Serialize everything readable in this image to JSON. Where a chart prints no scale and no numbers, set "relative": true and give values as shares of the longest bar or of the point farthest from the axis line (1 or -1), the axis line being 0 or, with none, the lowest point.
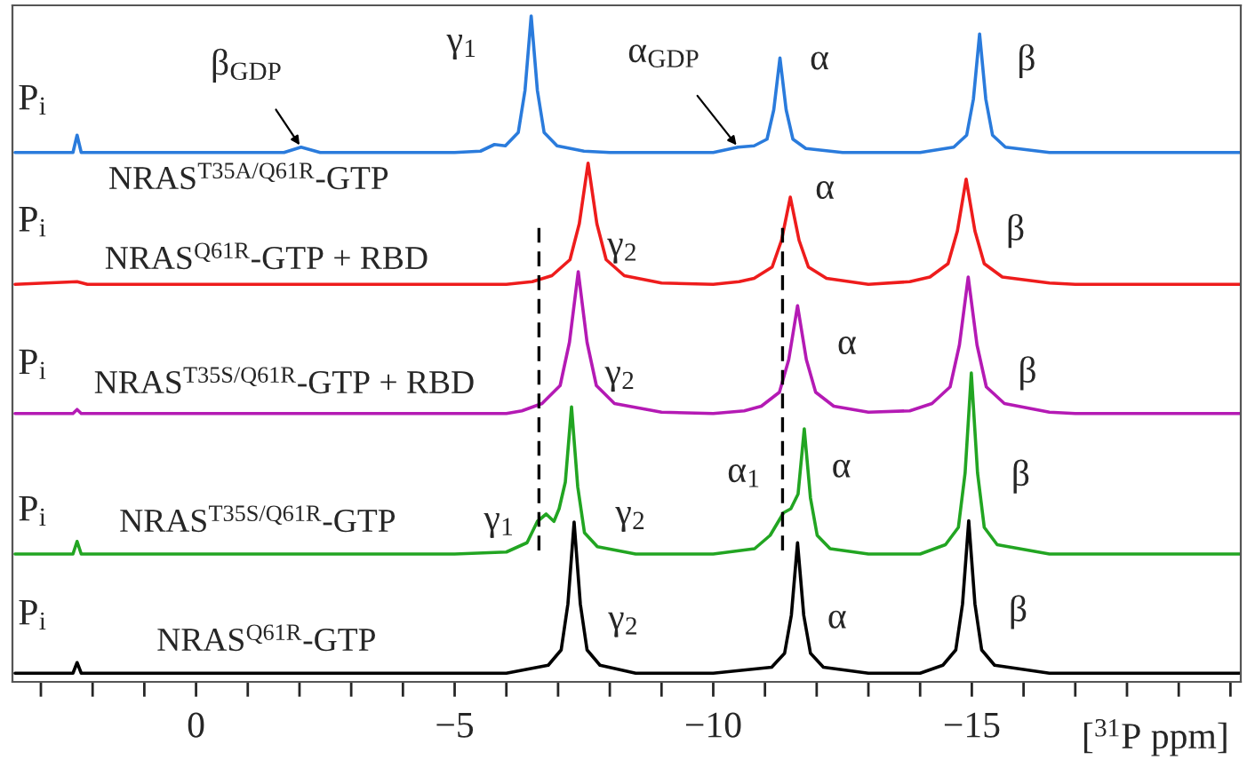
{
  "chart_data": {
    "type": "line",
    "relative": true,
    "xlim": [
      3.55,
      -20.2
    ],
    "xlabel": "[$^{31}$P ppm]",
    "tick_labels": "x",
    "xticks": [
      {
        "value": 3,
        "label": null
      },
      {
        "value": 2,
        "label": null
      },
      {
        "value": 1,
        "label": null
      },
      0,
      {
        "value": -1,
        "label": null
      },
      {
        "value": -2,
        "label": null
      },
      {
        "value": -3,
        "label": null
      },
      {
        "value": -4,
        "label": null
      },
      {
        "value": -5,
        "label": "−5"
      },
      {
        "value": -6,
        "label": null
      },
      {
        "value": -7,
        "label": null
      },
      {
        "value": -8,
        "label": null
      },
      {
        "value": -9,
        "label": null
      },
      {
        "value": -10,
        "label": "−10"
      },
      {
        "value": -11,
        "label": null
      },
      {
        "value": -12,
        "label": null
      },
      {
        "value": -13,
        "label": null
      },
      {
        "value": -14,
        "label": null
      },
      {
        "value": -15,
        "label": "−15"
      },
      {
        "value": -16,
        "label": null
      },
      {
        "value": -17,
        "label": null
      },
      {
        "value": -18,
        "label": null
      },
      {
        "value": -19,
        "label": null
      },
      {
        "value": -20,
        "label": null
      }
    ],
    "series": [
      {
        "color": "#2a7bdc",
        "x": [
          3.5,
          2.38,
          2.3,
          2.22,
          1,
          0,
          -1,
          -1.7,
          -2.03,
          -2.4,
          -3,
          -4,
          -5,
          -5.5,
          -5.77,
          -5.98,
          -6.23,
          -6.36,
          -6.48,
          -6.6,
          -6.73,
          -6.98,
          -7.5,
          -8,
          -9,
          -10,
          -10.48,
          -10.79,
          -11.04,
          -11.17,
          -11.29,
          -11.41,
          -11.54,
          -11.79,
          -12.5,
          -13,
          -14,
          -14.65,
          -14.9,
          -15.03,
          -15.15,
          -15.27,
          -15.4,
          -15.65,
          -16.5,
          -17,
          -18,
          -19,
          -20.2
        ],
        "values": [
          0.795,
          0.795,
          0.821,
          0.795,
          0.795,
          0.795,
          0.795,
          0.795,
          0.803,
          0.795,
          0.795,
          0.795,
          0.795,
          0.797,
          0.807,
          0.805,
          0.825,
          0.888,
          1,
          0.888,
          0.825,
          0.805,
          0.797,
          0.795,
          0.795,
          0.795,
          0.803,
          0.805,
          0.815,
          0.859,
          0.937,
          0.859,
          0.815,
          0.801,
          0.795,
          0.795,
          0.795,
          0.803,
          0.821,
          0.875,
          0.973,
          0.875,
          0.821,
          0.803,
          0.795,
          0.795,
          0.795,
          0.795,
          0.795
        ]
      },
      {
        "color": "#ee1c1c",
        "x": [
          3.5,
          2.3,
          2.1,
          1,
          0,
          -1,
          -2,
          -3,
          -4,
          -5,
          -6,
          -6.5,
          -6.88,
          -7.23,
          -7.41,
          -7.58,
          -7.75,
          -7.93,
          -8.28,
          -9,
          -10,
          -10.5,
          -10.79,
          -11.14,
          -11.32,
          -11.49,
          -11.66,
          -11.84,
          -12.19,
          -13,
          -13.8,
          -14.19,
          -14.54,
          -14.72,
          -14.89,
          -15.06,
          -15.24,
          -15.59,
          -16.5,
          -17,
          -18,
          -19,
          -20.2
        ],
        "values": [
          0.597,
          0.601,
          0.597,
          0.597,
          0.597,
          0.597,
          0.597,
          0.597,
          0.597,
          0.597,
          0.597,
          0.601,
          0.61,
          0.634,
          0.688,
          0.779,
          0.688,
          0.634,
          0.61,
          0.599,
          0.597,
          0.601,
          0.606,
          0.623,
          0.663,
          0.728,
          0.663,
          0.623,
          0.606,
          0.597,
          0.601,
          0.608,
          0.628,
          0.677,
          0.755,
          0.677,
          0.628,
          0.608,
          0.599,
          0.597,
          0.597,
          0.597,
          0.597
        ]
      },
      {
        "color": "#b41ab4",
        "x": [
          3.5,
          2.38,
          2.3,
          2.22,
          1,
          0,
          -1,
          -2,
          -3,
          -4,
          -5,
          -6,
          -6.3,
          -6.69,
          -7.04,
          -7.22,
          -7.39,
          -7.56,
          -7.74,
          -8.09,
          -9,
          -10,
          -10.6,
          -10.93,
          -11.28,
          -11.46,
          -11.63,
          -11.8,
          -11.98,
          -12.33,
          -13,
          -13.8,
          -14.23,
          -14.58,
          -14.76,
          -14.93,
          -15.1,
          -15.28,
          -15.63,
          -16.5,
          -17,
          -18,
          -19,
          -20.2
        ],
        "values": [
          0.403,
          0.403,
          0.409,
          0.403,
          0.403,
          0.403,
          0.403,
          0.403,
          0.403,
          0.403,
          0.403,
          0.403,
          0.407,
          0.418,
          0.445,
          0.51,
          0.616,
          0.51,
          0.445,
          0.418,
          0.405,
          0.403,
          0.407,
          0.414,
          0.435,
          0.484,
          0.565,
          0.484,
          0.435,
          0.414,
          0.405,
          0.407,
          0.418,
          0.443,
          0.506,
          0.608,
          0.506,
          0.443,
          0.418,
          0.405,
          0.403,
          0.403,
          0.403,
          0.403
        ]
      },
      {
        "color": "#22a522",
        "x": [
          3.5,
          2.38,
          2.3,
          2.22,
          1,
          0,
          -1,
          -2,
          -3,
          -4,
          -5,
          -6,
          -6.4,
          -6.6,
          -6.77,
          -6.92,
          -7.02,
          -7.14,
          -7.26,
          -7.38,
          -7.51,
          -7.76,
          -8.5,
          -9,
          -10,
          -10.8,
          -11.1,
          -11.36,
          -11.5,
          -11.64,
          -11.76,
          -11.88,
          -12.01,
          -12.26,
          -13,
          -14,
          -14.49,
          -14.74,
          -14.87,
          -14.99,
          -15.11,
          -15.24,
          -15.49,
          -16.5,
          -17,
          -18,
          -19,
          -20.2
        ],
        "values": [
          0.192,
          0.192,
          0.211,
          0.192,
          0.192,
          0.192,
          0.192,
          0.192,
          0.192,
          0.192,
          0.192,
          0.195,
          0.209,
          0.241,
          0.252,
          0.241,
          0.26,
          0.3,
          0.413,
          0.293,
          0.224,
          0.203,
          0.192,
          0.192,
          0.192,
          0.2,
          0.22,
          0.254,
          0.26,
          0.282,
          0.38,
          0.276,
          0.22,
          0.2,
          0.192,
          0.192,
          0.206,
          0.232,
          0.314,
          0.464,
          0.314,
          0.232,
          0.206,
          0.192,
          0.192,
          0.192,
          0.192,
          0.192
        ]
      },
      {
        "color": "#000000",
        "x": [
          3.5,
          2.38,
          2.3,
          2.22,
          1,
          0,
          -1,
          -2,
          -3,
          -4,
          -5,
          -6,
          -6.81,
          -7.06,
          -7.19,
          -7.31,
          -7.43,
          -7.56,
          -7.81,
          -8.5,
          -9,
          -10,
          -11.13,
          -11.38,
          -11.51,
          -11.63,
          -11.75,
          -11.88,
          -12.13,
          -13,
          -14,
          -14.44,
          -14.69,
          -14.82,
          -14.94,
          -15.06,
          -15.19,
          -15.44,
          -16.5,
          -17,
          -18,
          -19,
          -20.2
        ],
        "values": [
          0.013,
          0.013,
          0.029,
          0.013,
          0.013,
          0.013,
          0.013,
          0.013,
          0.013,
          0.013,
          0.013,
          0.013,
          0.025,
          0.048,
          0.117,
          0.24,
          0.117,
          0.048,
          0.025,
          0.013,
          0.013,
          0.013,
          0.022,
          0.043,
          0.1,
          0.209,
          0.1,
          0.043,
          0.022,
          0.013,
          0.013,
          0.025,
          0.048,
          0.117,
          0.242,
          0.117,
          0.048,
          0.025,
          0.013,
          0.013,
          0.013,
          0.013,
          0.013
        ]
      }
    ],
    "ref_lines": [
      {
        "axis": "x",
        "value": -6.63,
        "color": "#000000",
        "line_style": "dashed"
      },
      {
        "axis": "x",
        "value": -11.34,
        "color": "#000000",
        "line_style": "dashed"
      }
    ],
    "annotations": [
      {
        "text": "P$_{i}$",
        "x": 2.3,
        "y": 0.821
      },
      {
        "text": "β$_{GDP}$",
        "x": -2.03,
        "y": 0.803
      },
      {
        "text": "γ$_{1}$",
        "x": -6.48,
        "y": 1
      },
      {
        "text": "α$_{GDP}$",
        "x": -10.48,
        "y": 0.803
      },
      {
        "text": "α",
        "x": -11.29,
        "y": 0.937
      },
      {
        "text": "β",
        "x": -15.15,
        "y": 0.973
      },
      {
        "text": "P$_{i}$",
        "x": 2.3,
        "y": 0.601
      },
      {
        "text": "γ$_{2}$",
        "x": -7.58,
        "y": 0.779
      },
      {
        "text": "α",
        "x": -11.49,
        "y": 0.728
      },
      {
        "text": "β",
        "x": -14.89,
        "y": 0.755
      },
      {
        "text": "P$_{i}$",
        "x": 2.3,
        "y": 0.409
      },
      {
        "text": "γ$_{2}$",
        "x": -7.39,
        "y": 0.616
      },
      {
        "text": "α",
        "x": -11.63,
        "y": 0.565
      },
      {
        "text": "β",
        "x": -14.93,
        "y": 0.608
      },
      {
        "text": "P$_{i}$",
        "x": 2.3,
        "y": 0.211
      },
      {
        "text": "γ$_{1}$",
        "x": -6.77,
        "y": 0.252
      },
      {
        "text": "γ$_{2}$",
        "x": -7.26,
        "y": 0.413
      },
      {
        "text": "α$_{1}$",
        "x": -11.36,
        "y": 0.254
      },
      {
        "text": "α",
        "x": -11.76,
        "y": 0.38
      },
      {
        "text": "β",
        "x": -14.99,
        "y": 0.464
      },
      {
        "text": "P$_{i}$",
        "x": 2.3,
        "y": 0.029
      },
      {
        "text": "γ$_{2}$",
        "x": -7.31,
        "y": 0.24
      },
      {
        "text": "α",
        "x": -11.63,
        "y": 0.209
      },
      {
        "text": "β",
        "x": -14.94,
        "y": 0.242
      },
      "NRAS$^{T35A/Q61R}$-GTP",
      "NRAS$^{Q61R}$-GTP + RBD",
      "NRAS$^{T35S/Q61R}$-GTP + RBD",
      "NRAS$^{T35S/Q61R}$-GTP",
      "NRAS$^{Q61R}$-GTP"
    ]
  }
}
